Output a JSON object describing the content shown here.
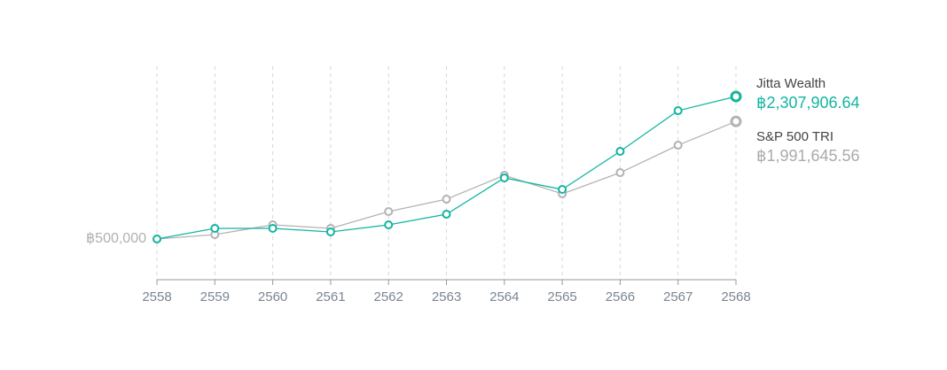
{
  "chart_data": {
    "type": "line",
    "x": [
      2558,
      2559,
      2560,
      2561,
      2562,
      2563,
      2564,
      2565,
      2566,
      2567,
      2568
    ],
    "xlim": [
      2558,
      2568
    ],
    "xticks": [
      2558,
      2559,
      2560,
      2561,
      2562,
      2563,
      2564,
      2565,
      2566,
      2567,
      2568
    ],
    "ylim": [
      -16500,
      2690000
    ],
    "yticks": [
      {
        "value": 500000,
        "label": "฿500,000"
      }
    ],
    "grid": "x",
    "series": [
      {
        "name": "Jitta Wealth",
        "color": "#12b5a0",
        "values": [
          500000,
          635000,
          635000,
          590000,
          680000,
          814000,
          1275000,
          1129000,
          1612000,
          2128000,
          2307906.64
        ],
        "value_labels": [
          null,
          null,
          null,
          null,
          null,
          null,
          null,
          null,
          null,
          null,
          "฿2,307,906.64"
        ]
      },
      {
        "name": "S&P 500 TRI",
        "color": "#b3b3b3",
        "values": [
          500000,
          556000,
          680000,
          635000,
          848000,
          1005000,
          1308000,
          1073000,
          1342000,
          1690000,
          1991645.56
        ],
        "value_labels": [
          null,
          null,
          null,
          null,
          null,
          null,
          null,
          null,
          null,
          null,
          "฿1,991,645.56"
        ]
      }
    ]
  }
}
